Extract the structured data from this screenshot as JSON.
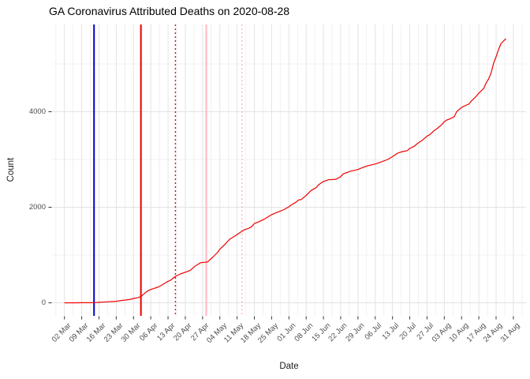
{
  "title": "GA Coronavirus Attributed Deaths on 2020-08-28",
  "axes": {
    "x_title": "Date",
    "y_title": "Count"
  },
  "colors": {
    "series": "#ee0000",
    "grid_major": "#e3e3e3",
    "grid_minor": "#f0f0f0",
    "tick": "#333333",
    "tick_text": "#4d4d4d",
    "vline_blue": "#0000cc",
    "vline_red": "#ee0000",
    "vline_pink": "#ffb6c1"
  },
  "chart_data": {
    "type": "line",
    "title": "GA Coronavirus Attributed Deaths on 2020-08-28",
    "xlabel": "Date",
    "ylabel": "Count",
    "x_start_date": "2020-03-02",
    "x_tick_labels": [
      "02 Mar",
      "09 Mar",
      "16 Mar",
      "23 Mar",
      "30 Mar",
      "06 Apr",
      "13 Apr",
      "20 Apr",
      "27 Apr",
      "04 May",
      "11 May",
      "18 May",
      "25 May",
      "01 Jun",
      "08 Jun",
      "15 Jun",
      "22 Jun",
      "29 Jun",
      "06 Jul",
      "13 Jul",
      "20 Jul",
      "27 Jul",
      "03 Aug",
      "10 Aug",
      "17 Aug",
      "24 Aug",
      "31 Aug"
    ],
    "x_tick_days": [
      0,
      7,
      14,
      21,
      28,
      35,
      42,
      49,
      56,
      63,
      70,
      77,
      84,
      91,
      98,
      105,
      112,
      119,
      126,
      133,
      140,
      147,
      154,
      161,
      168,
      175,
      182
    ],
    "xlim_days": [
      0,
      182
    ],
    "y_ticks": [
      0,
      2000,
      4000
    ],
    "y_minor_ticks": [
      1000,
      3000,
      5000
    ],
    "ylim": [
      0,
      5830
    ],
    "grid": true,
    "legend": false,
    "series": [
      {
        "name": "cumulative-deaths",
        "color": "#ee0000",
        "points": [
          [
            0,
            0
          ],
          [
            5,
            0
          ],
          [
            7,
            1
          ],
          [
            10,
            1
          ],
          [
            12,
            3
          ],
          [
            14,
            10
          ],
          [
            17,
            20
          ],
          [
            21,
            32
          ],
          [
            23,
            48
          ],
          [
            25,
            60
          ],
          [
            27,
            75
          ],
          [
            28,
            91
          ],
          [
            30,
            110
          ],
          [
            31,
            130
          ],
          [
            32,
            175
          ],
          [
            33,
            220
          ],
          [
            34,
            256
          ],
          [
            35,
            280
          ],
          [
            36,
            295
          ],
          [
            38,
            330
          ],
          [
            39,
            355
          ],
          [
            41,
            420
          ],
          [
            42,
            450
          ],
          [
            43,
            471
          ],
          [
            45,
            554
          ],
          [
            47,
            603
          ],
          [
            49,
            640
          ],
          [
            51,
            680
          ],
          [
            53,
            770
          ],
          [
            54,
            800
          ],
          [
            55,
            835
          ],
          [
            56,
            843
          ],
          [
            58,
            855
          ],
          [
            60,
            950
          ],
          [
            61,
            1000
          ],
          [
            62,
            1050
          ],
          [
            63,
            1120
          ],
          [
            65,
            1220
          ],
          [
            67,
            1330
          ],
          [
            69,
            1395
          ],
          [
            70,
            1430
          ],
          [
            71,
            1465
          ],
          [
            73,
            1530
          ],
          [
            75,
            1565
          ],
          [
            76,
            1600
          ],
          [
            77,
            1660
          ],
          [
            78,
            1680
          ],
          [
            79,
            1700
          ],
          [
            81,
            1750
          ],
          [
            84,
            1845
          ],
          [
            86,
            1890
          ],
          [
            87,
            1910
          ],
          [
            89,
            1950
          ],
          [
            91,
            2010
          ],
          [
            92,
            2050
          ],
          [
            94,
            2110
          ],
          [
            95,
            2155
          ],
          [
            96,
            2160
          ],
          [
            98,
            2250
          ],
          [
            100,
            2350
          ],
          [
            102,
            2410
          ],
          [
            103,
            2470
          ],
          [
            105,
            2540
          ],
          [
            107,
            2575
          ],
          [
            110,
            2585
          ],
          [
            112,
            2640
          ],
          [
            113,
            2700
          ],
          [
            115,
            2736
          ],
          [
            116,
            2755
          ],
          [
            119,
            2790
          ],
          [
            121,
            2835
          ],
          [
            123,
            2870
          ],
          [
            126,
            2905
          ],
          [
            128,
            2940
          ],
          [
            131,
            3000
          ],
          [
            133,
            3060
          ],
          [
            135,
            3130
          ],
          [
            137,
            3165
          ],
          [
            139,
            3185
          ],
          [
            140,
            3230
          ],
          [
            142,
            3285
          ],
          [
            143,
            3330
          ],
          [
            145,
            3400
          ],
          [
            147,
            3490
          ],
          [
            148,
            3515
          ],
          [
            150,
            3610
          ],
          [
            151,
            3645
          ],
          [
            153,
            3730
          ],
          [
            154,
            3790
          ],
          [
            155,
            3827
          ],
          [
            156,
            3845
          ],
          [
            158,
            3895
          ],
          [
            159,
            4000
          ],
          [
            161,
            4090
          ],
          [
            163,
            4140
          ],
          [
            164,
            4160
          ],
          [
            165,
            4225
          ],
          [
            167,
            4325
          ],
          [
            168,
            4390
          ],
          [
            170,
            4490
          ],
          [
            171,
            4605
          ],
          [
            172,
            4690
          ],
          [
            173,
            4820
          ],
          [
            174,
            5020
          ],
          [
            175,
            5150
          ],
          [
            176,
            5300
          ],
          [
            177,
            5430
          ],
          [
            179,
            5530
          ]
        ]
      }
    ],
    "vlines": [
      {
        "name": "vline-blue-solid",
        "approx_date": "2020-03-14",
        "day": 12,
        "color": "#0000cc",
        "style": "solid"
      },
      {
        "name": "vline-red-solid",
        "approx_date": "2020-04-02",
        "day": 31,
        "color": "#ee0000",
        "style": "solid"
      },
      {
        "name": "vline-red-dotted",
        "approx_date": "2020-04-16",
        "day": 45,
        "color": "#ee0000",
        "style": "dotted"
      },
      {
        "name": "vline-pink-solid",
        "approx_date": "2020-04-29",
        "day": 57.5,
        "color": "#ffb6c1",
        "style": "solid"
      },
      {
        "name": "vline-pink-dotted",
        "approx_date": "2020-05-13",
        "day": 72,
        "color": "#ffb6c1",
        "style": "dotted"
      }
    ]
  }
}
